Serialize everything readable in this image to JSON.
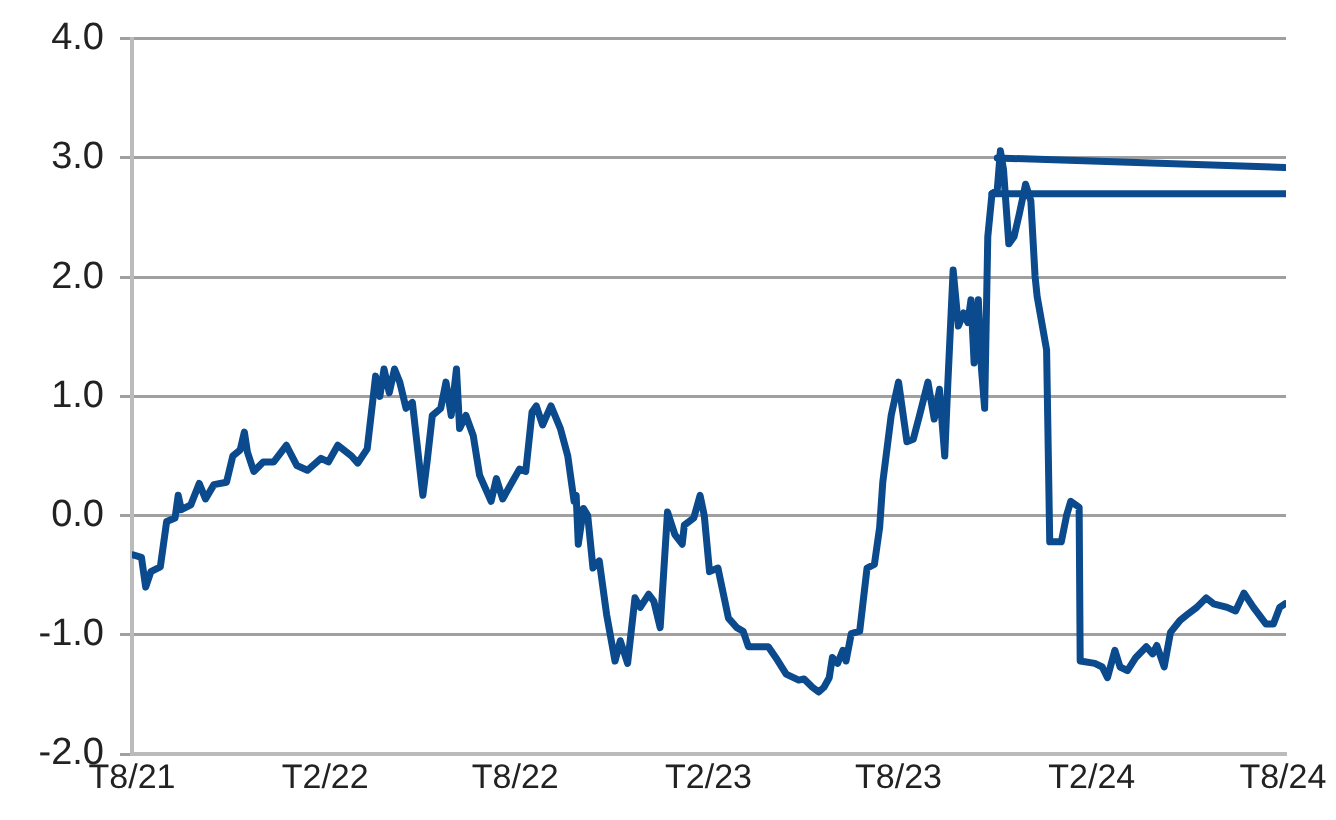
{
  "chart_data": {
    "type": "line",
    "grid": "y",
    "marker": "none",
    "line_style": "solid",
    "xlim": [
      "2021-08-01",
      "2024-08-04"
    ],
    "xticks": [
      {
        "value": "2021-08-01",
        "label": "T8/21"
      },
      {
        "value": "2022-02-01",
        "label": "T2/22"
      },
      {
        "value": "2022-08-01",
        "label": "T8/22"
      },
      {
        "value": "2023-02-01",
        "label": "T2/23"
      },
      {
        "value": "2023-08-01",
        "label": "T8/23"
      },
      {
        "value": "2024-02-01",
        "label": "T2/24"
      },
      {
        "value": "2024-08-01",
        "label": "T8/24"
      }
    ],
    "ylim": [
      -2,
      4
    ],
    "yticks": [
      {
        "value": -2,
        "label": "-2.0"
      },
      {
        "value": -1,
        "label": "-1.0"
      },
      {
        "value": 0,
        "label": "0.0"
      },
      {
        "value": 1,
        "label": "1.0"
      },
      {
        "value": 2,
        "label": "2.0"
      },
      {
        "value": 3,
        "label": "3.0"
      },
      {
        "value": 4,
        "label": "4.0"
      }
    ],
    "series": [
      {
        "color": "#0b4a8c",
        "x": [
          "2021-08-02",
          "2021-08-10",
          "2021-08-14",
          "2021-08-19",
          "2021-08-28",
          "2021-09-03",
          "2021-09-11",
          "2021-09-14",
          "2021-09-17",
          "2021-09-26",
          "2021-10-04",
          "2021-10-10",
          "2021-10-18",
          "2021-10-30",
          "2021-11-05",
          "2021-11-12",
          "2021-11-16",
          "2021-11-19",
          "2021-11-25",
          "2021-12-04",
          "2021-12-14",
          "2021-12-26",
          "2022-01-05",
          "2022-01-15",
          "2022-01-28",
          "2022-02-04",
          "2022-02-13",
          "2022-02-26",
          "2022-03-04",
          "2022-03-13",
          "2022-03-21",
          "2022-03-25",
          "2022-03-29",
          "2022-04-03",
          "2022-04-08",
          "2022-04-13",
          "2022-04-19",
          "2022-04-25",
          "2022-04-30",
          "2022-05-05",
          "2022-05-09",
          "2022-05-14",
          "2022-05-22",
          "2022-05-27",
          "2022-06-01",
          "2022-06-06",
          "2022-06-09",
          "2022-06-15",
          "2022-06-22",
          "2022-06-28",
          "2022-07-09",
          "2022-07-14",
          "2022-07-20",
          "2022-08-05",
          "2022-08-11",
          "2022-08-17",
          "2022-08-21",
          "2022-08-27",
          "2022-09-04",
          "2022-09-13",
          "2022-09-20",
          "2022-09-26",
          "2022-09-28",
          "2022-09-30",
          "2022-10-05",
          "2022-10-09",
          "2022-10-14",
          "2022-10-20",
          "2022-10-27",
          "2022-11-04",
          "2022-11-09",
          "2022-11-16",
          "2022-11-23",
          "2022-11-28",
          "2022-12-06",
          "2022-12-11",
          "2022-12-17",
          "2022-12-24",
          "2022-12-31",
          "2023-01-07",
          "2023-01-09",
          "2023-01-18",
          "2023-01-24",
          "2023-01-28",
          "2023-02-02",
          "2023-02-10",
          "2023-02-20",
          "2023-02-28",
          "2023-03-06",
          "2023-03-11",
          "2023-03-30",
          "2023-04-06",
          "2023-04-16",
          "2023-04-28",
          "2023-05-03",
          "2023-05-11",
          "2023-05-17",
          "2023-05-22",
          "2023-05-27",
          "2023-05-30",
          "2023-06-04",
          "2023-06-09",
          "2023-06-12",
          "2023-06-17",
          "2023-06-25",
          "2023-07-02",
          "2023-07-09",
          "2023-07-14",
          "2023-07-17",
          "2023-07-25",
          "2023-08-01",
          "2023-08-09",
          "2023-08-15",
          "2023-08-21",
          "2023-08-29",
          "2023-09-04",
          "2023-09-09",
          "2023-09-14",
          "2023-09-17",
          "2023-09-22",
          "2023-09-27",
          "2023-10-02",
          "2023-10-06",
          "2023-10-09",
          "2023-10-12",
          "2023-10-16",
          "2023-10-19",
          "2023-10-22",
          "2023-10-25",
          "2023-10-29",
          "2023-11-03",
          "2023-11-06",
          "2023-11-09",
          "2023-11-14",
          "2023-11-19",
          "2023-11-24",
          "2023-11-30",
          "2023-12-05",
          "2023-12-09",
          "2023-12-11",
          "2023-12-20",
          "2023-12-23",
          "2024-01-03",
          "2024-01-08",
          "2024-01-12",
          "2024-01-20",
          "2024-01-21",
          "2024-02-04",
          "2024-02-11",
          "2024-02-16",
          "2024-02-23",
          "2024-02-28",
          "2024-03-06",
          "2024-03-14",
          "2024-03-24",
          "2024-03-30",
          "2024-04-03",
          "2024-04-10",
          "2024-04-16",
          "2024-04-25",
          "2024-05-02",
          "2024-05-11",
          "2024-05-20",
          "2024-05-27",
          "2024-06-09",
          "2024-06-17",
          "2024-06-25",
          "2024-07-04",
          "2024-07-16",
          "2024-07-23",
          "2024-07-29",
          "2024-08-03"
        ],
        "values": [
          -0.33,
          -0.35,
          -0.6,
          -0.47,
          -0.43,
          -0.05,
          -0.02,
          0.17,
          0.05,
          0.09,
          0.27,
          0.14,
          0.26,
          0.28,
          0.5,
          0.55,
          0.7,
          0.53,
          0.37,
          0.45,
          0.45,
          0.59,
          0.42,
          0.38,
          0.48,
          0.45,
          0.59,
          0.5,
          0.44,
          0.56,
          1.17,
          1.0,
          1.23,
          1.03,
          1.23,
          1.12,
          0.9,
          0.95,
          0.56,
          0.17,
          0.45,
          0.84,
          0.9,
          1.12,
          0.84,
          1.23,
          0.73,
          0.84,
          0.67,
          0.34,
          0.12,
          0.31,
          0.14,
          0.39,
          0.37,
          0.87,
          0.92,
          0.76,
          0.92,
          0.73,
          0.5,
          0.12,
          0.17,
          -0.24,
          0.06,
          0.0,
          -0.44,
          -0.38,
          -0.83,
          -1.22,
          -1.05,
          -1.24,
          -0.69,
          -0.77,
          -0.66,
          -0.72,
          -0.94,
          0.03,
          -0.16,
          -0.24,
          -0.08,
          -0.02,
          0.17,
          0.0,
          -0.47,
          -0.44,
          -0.86,
          -0.94,
          -0.97,
          -1.1,
          -1.1,
          -1.19,
          -1.33,
          -1.38,
          -1.37,
          -1.44,
          -1.48,
          -1.44,
          -1.36,
          -1.19,
          -1.24,
          -1.13,
          -1.22,
          -0.99,
          -0.97,
          -0.44,
          -0.41,
          -0.1,
          0.28,
          0.84,
          1.12,
          0.62,
          0.64,
          0.84,
          1.12,
          0.81,
          1.06,
          0.5,
          1.12,
          2.06,
          1.59,
          1.7,
          1.62,
          1.81,
          1.28,
          1.81,
          1.23,
          0.9,
          2.34,
          2.7,
          2.73,
          3.06,
          2.9,
          2.28,
          2.34,
          2.53,
          2.78,
          2.64,
          2.01,
          1.84,
          1.39,
          -0.22,
          -0.22,
          0.0,
          0.12,
          0.07,
          -1.22,
          -1.24,
          -1.27,
          -1.36,
          -1.13,
          -1.27,
          -1.3,
          -1.19,
          -1.1,
          -1.16,
          -1.09,
          -1.27,
          -0.98,
          -0.88,
          -0.83,
          -0.77,
          -0.69,
          -0.74,
          -0.77,
          -0.8,
          -0.65,
          -0.77,
          -0.91,
          -0.91,
          -0.77,
          -0.74
        ]
      },
      {
        "color": "#0b4a8c",
        "x": [
          "2023-11-03",
          "2024-08-03"
        ],
        "values": [
          3.0,
          2.92
        ]
      },
      {
        "color": "#0b4a8c",
        "x": [
          "2023-10-29",
          "2024-08-03"
        ],
        "values": [
          2.7,
          2.7
        ]
      }
    ]
  }
}
